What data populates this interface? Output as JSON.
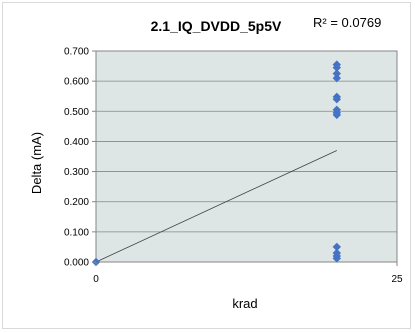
{
  "chart_data": {
    "type": "scatter",
    "title": "2.1_IQ_DVDD_5p5V",
    "annotation": "R² = 0.0769",
    "xlabel": "krad",
    "ylabel": "Delta (mA)",
    "xlim": [
      0,
      25
    ],
    "ylim": [
      0,
      0.7
    ],
    "x_ticks": [
      "0",
      "25"
    ],
    "y_ticks": [
      "0.000",
      "0.100",
      "0.200",
      "0.300",
      "0.400",
      "0.500",
      "0.600",
      "0.700"
    ],
    "grid": true,
    "legend": "none",
    "series": [
      {
        "points": [
          {
            "x": 0,
            "y": 0.0
          },
          {
            "x": 20,
            "y": 0.655
          },
          {
            "x": 20,
            "y": 0.645
          },
          {
            "x": 20,
            "y": 0.625
          },
          {
            "x": 20,
            "y": 0.61
          },
          {
            "x": 20,
            "y": 0.548
          },
          {
            "x": 20,
            "y": 0.54
          },
          {
            "x": 20,
            "y": 0.505
          },
          {
            "x": 20,
            "y": 0.495
          },
          {
            "x": 20,
            "y": 0.488
          },
          {
            "x": 20,
            "y": 0.05
          },
          {
            "x": 20,
            "y": 0.03
          },
          {
            "x": 20,
            "y": 0.02
          },
          {
            "x": 20,
            "y": 0.012
          }
        ],
        "color": "#4472c4"
      }
    ],
    "trendline": {
      "type": "linear",
      "x": [
        0,
        20
      ],
      "y": [
        0.0,
        0.37
      ],
      "color": "#404040"
    }
  }
}
